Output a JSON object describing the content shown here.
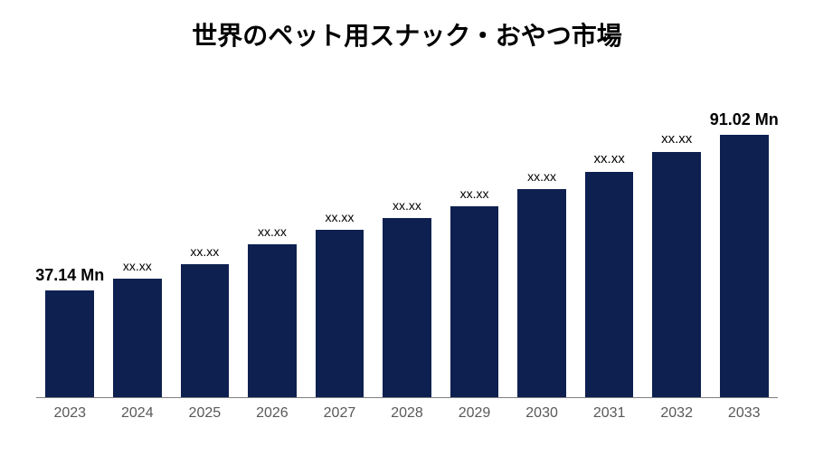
{
  "chart": {
    "type": "bar",
    "title": "世界のペット用スナック・おやつ市場",
    "title_fontsize": 28,
    "title_color": "#000000",
    "background_color": "#ffffff",
    "bar_color": "#0e2050",
    "axis_color": "#7f7f7f",
    "x_label_color": "#595959",
    "x_label_fontsize": 16,
    "data_label_color": "#000000",
    "ylim": [
      0,
      100
    ],
    "bar_width_ratio": 0.72,
    "categories": [
      "2023",
      "2024",
      "2025",
      "2026",
      "2027",
      "2028",
      "2029",
      "2030",
      "2031",
      "2032",
      "2033"
    ],
    "values": [
      37.14,
      41,
      46,
      53,
      58,
      62,
      66,
      72,
      78,
      85,
      91.02
    ],
    "value_labels": [
      "37.14 Mn",
      "xx.xx",
      "xx.xx",
      "xx.xx",
      "xx.xx",
      "xx.xx",
      "xx.xx",
      "xx.xx",
      "xx.xx",
      "xx.xx",
      "91.02 Mn"
    ],
    "label_bold": [
      true,
      false,
      false,
      false,
      false,
      false,
      false,
      false,
      false,
      false,
      true
    ],
    "label_fontsizes": [
      18,
      14,
      14,
      14,
      14,
      14,
      14,
      14,
      15,
      15,
      18
    ]
  }
}
